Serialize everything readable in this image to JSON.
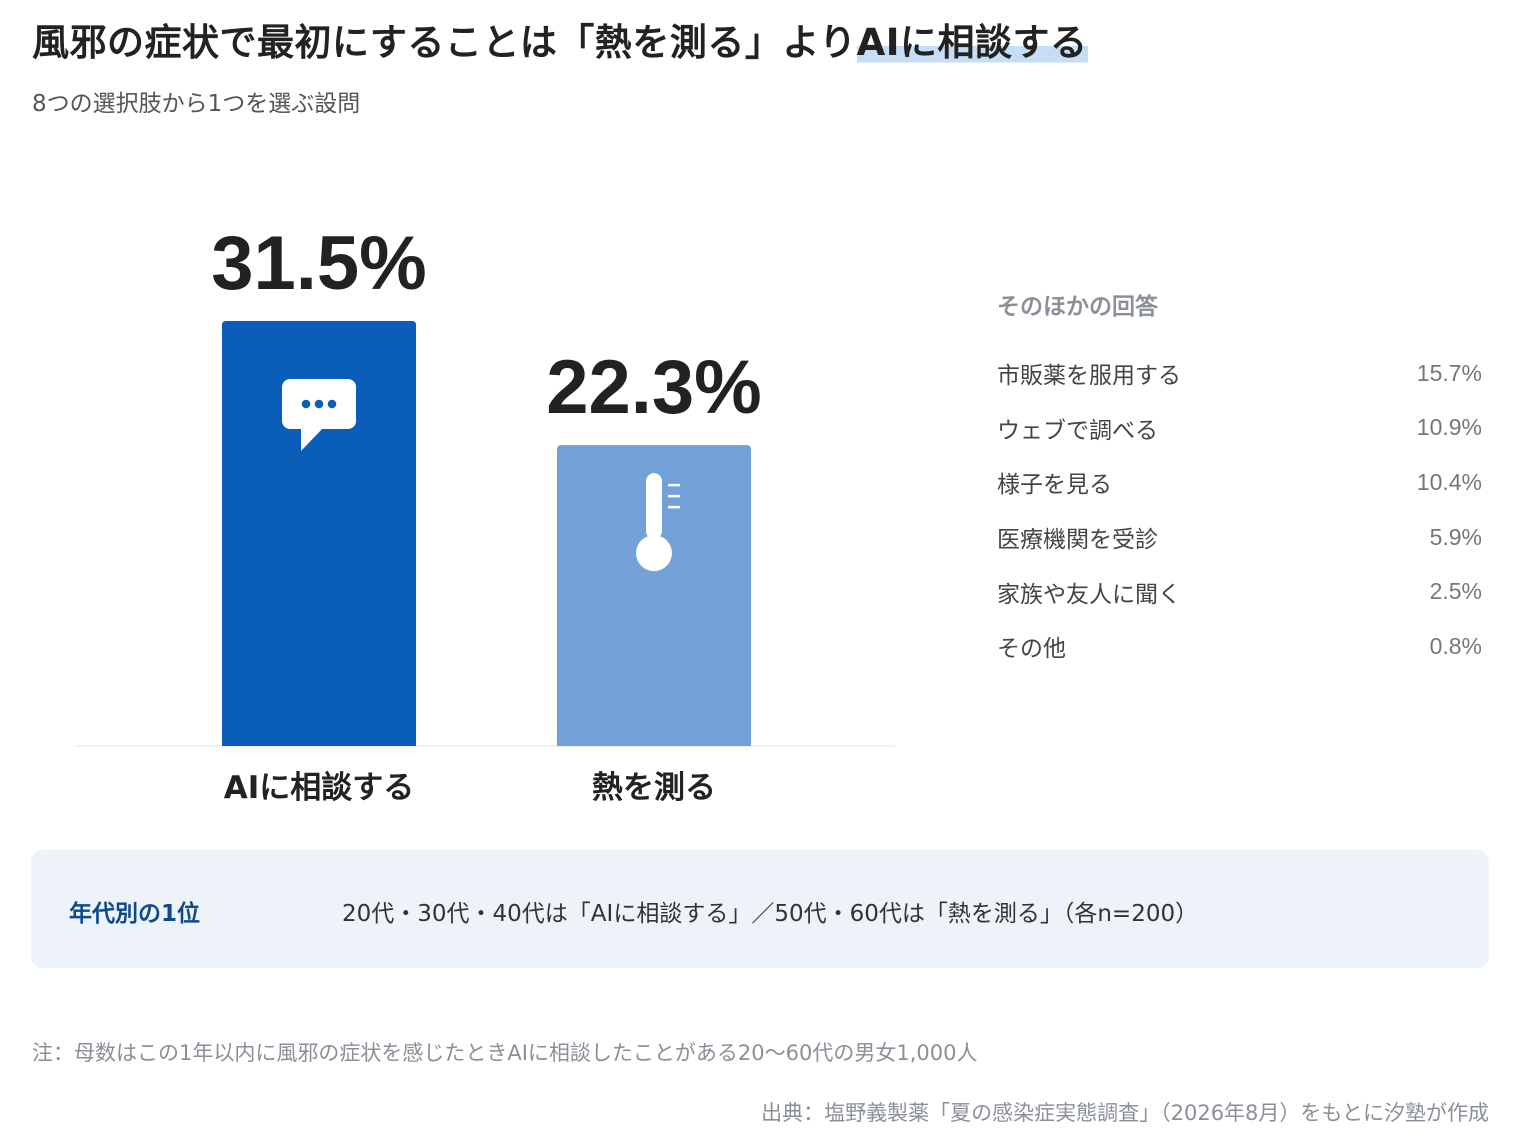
{
  "header": {
    "title_main": "風邪の症状で最初にすることは「熱を測る」より",
    "title_highlight": "AIに相談する",
    "subtitle": "8つの選択肢から1つを選ぶ設問"
  },
  "colors": {
    "bar_primary": "#0b5eb8",
    "bar_secondary": "#72a1d8",
    "icon": "#ffffff",
    "highlight": "#c5ddf5"
  },
  "chart_data": {
    "type": "bar",
    "categories": [
      "AIに相談する",
      "熱を測る"
    ],
    "values": [
      31.5,
      22.3
    ],
    "value_labels": [
      "31.5%",
      "22.3%"
    ],
    "icons": [
      "chat-bubble-icon",
      "thermometer-icon"
    ],
    "ylim": [
      0,
      31.5
    ],
    "grid": false,
    "legend": "none"
  },
  "others": {
    "heading": "そのほかの回答",
    "items": [
      {
        "label": "市販薬を服用する",
        "value": "15.7%"
      },
      {
        "label": "ウェブで調べる",
        "value": "10.9%"
      },
      {
        "label": "様子を見る",
        "value": "10.4%"
      },
      {
        "label": "医療機関を受診",
        "value": "5.9%"
      },
      {
        "label": "家族や友人に聞く",
        "value": "2.5%"
      },
      {
        "label": "その他",
        "value": "0.8%"
      }
    ]
  },
  "age_note": {
    "key": "年代別の1位",
    "text": "20代・30代・40代は「AIに相談する」／50代・60代は「熱を測る」（各n=200）"
  },
  "footnote": "注：母数はこの1年以内に風邪の症状を感じたときAIに相談したことがある20〜60代の男女1,000人",
  "source": "出典：塩野義製薬「夏の感染症実態調査」（2026年8月）をもとに汐塾が作成"
}
